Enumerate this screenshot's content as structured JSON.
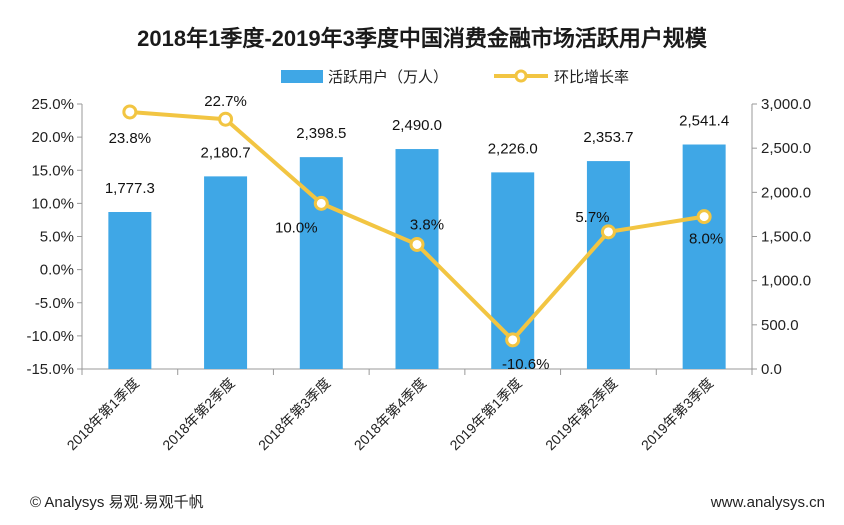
{
  "chart_data": {
    "type": "bar+line",
    "title": "2018年1季度-2019年3季度中国消费金融市场活跃用户规模",
    "categories": [
      "2018年第1季度",
      "2018年第2季度",
      "2018年第3季度",
      "2018年第4季度",
      "2019年第1季度",
      "2019年第2季度",
      "2019年第3季度"
    ],
    "series": [
      {
        "name": "活跃用户（万人）",
        "type": "bar",
        "axis": "right",
        "values": [
          1777.3,
          2180.7,
          2398.5,
          2490.0,
          2226.0,
          2353.7,
          2541.4
        ],
        "labels": [
          "1,777.3",
          "2,180.7",
          "2,398.5",
          "2,490.0",
          "2,226.0",
          "2,353.7",
          "2,541.4"
        ],
        "color": "#3FA7E6"
      },
      {
        "name": "环比增长率",
        "type": "line",
        "axis": "left",
        "values": [
          23.8,
          22.7,
          10.0,
          3.8,
          -10.6,
          5.7,
          8.0
        ],
        "labels": [
          "23.8%",
          "22.7%",
          "10.0%",
          "3.8%",
          "-10.6%",
          "5.7%",
          "8.0%"
        ],
        "color": "#F2C542"
      }
    ],
    "left_axis": {
      "ylim": [
        -15,
        25
      ],
      "ticks": [
        "25.0%",
        "20.0%",
        "15.0%",
        "10.0%",
        "5.0%",
        "0.0%",
        "-5.0%",
        "-10.0%",
        "-15.0%"
      ]
    },
    "right_axis": {
      "ylim": [
        0,
        3000
      ],
      "ticks": [
        "3,000.0",
        "2,500.0",
        "2,000.0",
        "1,500.0",
        "1,000.0",
        "500.0",
        "0.0"
      ]
    },
    "legend_position": "top-center",
    "grid": false
  },
  "footer": {
    "left": "© Analysys 易观·易观千帆",
    "right": "www.analysys.cn"
  }
}
